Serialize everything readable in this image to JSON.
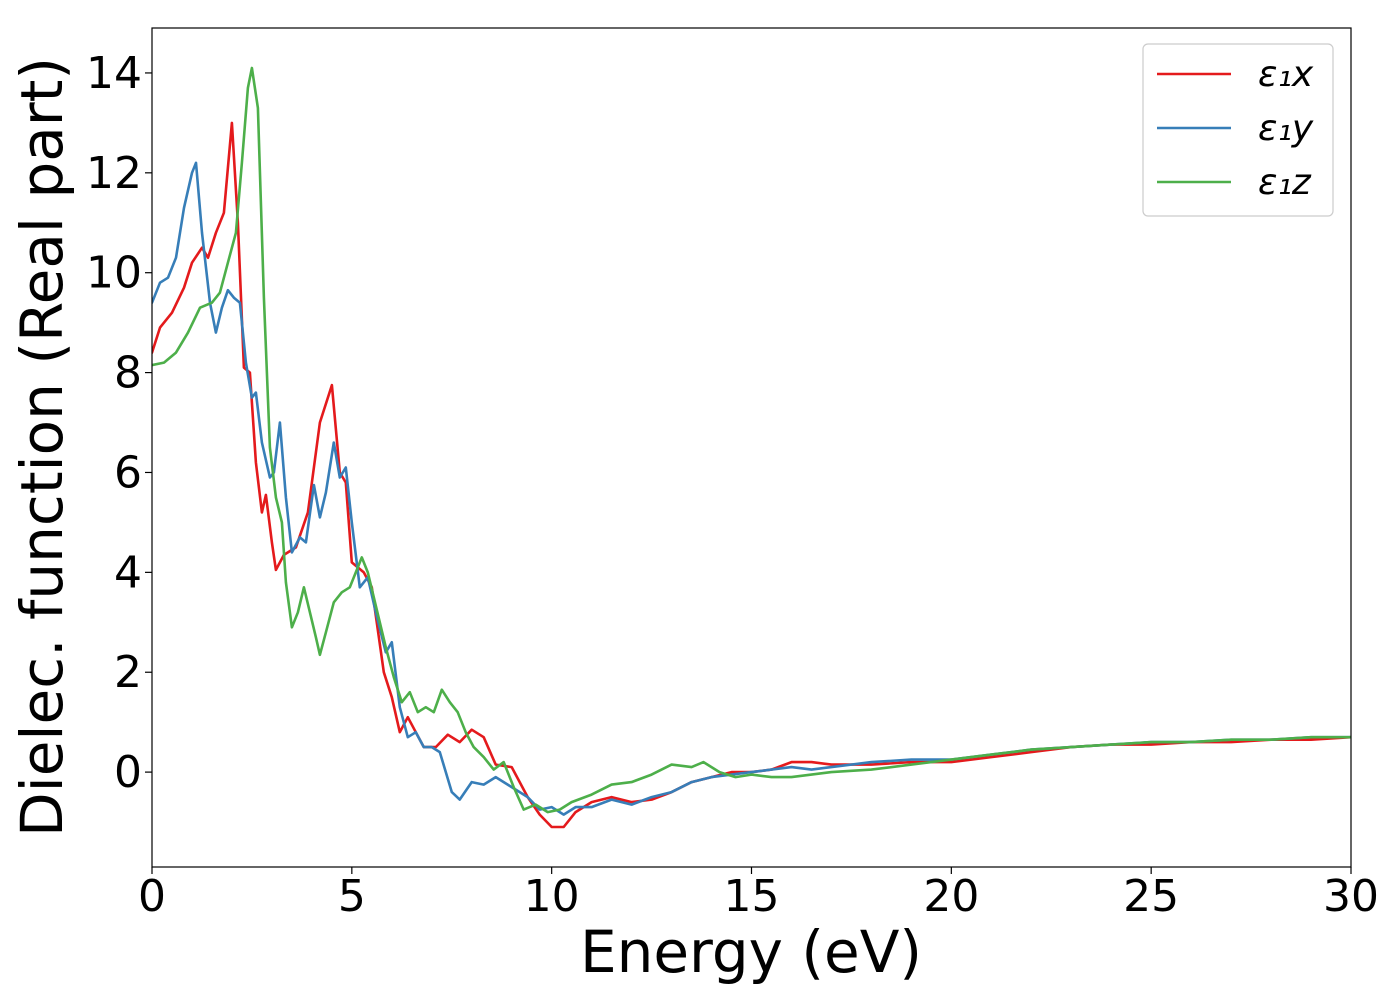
{
  "chart_data": {
    "type": "line",
    "xlabel": "Energy (eV)",
    "ylabel": "Dielec. function (Real part)",
    "xlim": [
      0,
      30
    ],
    "ylim": [
      -1.9,
      14.9
    ],
    "xticks": [
      0,
      5,
      10,
      15,
      20,
      25,
      30
    ],
    "yticks": [
      0,
      2,
      4,
      6,
      8,
      10,
      12,
      14
    ],
    "grid": false,
    "legend_position": "top-right",
    "series": [
      {
        "name": "ε₁x",
        "color": "#e41a1c",
        "points": [
          [
            0,
            8.4
          ],
          [
            0.2,
            8.9
          ],
          [
            0.5,
            9.2
          ],
          [
            0.8,
            9.7
          ],
          [
            1.0,
            10.2
          ],
          [
            1.25,
            10.5
          ],
          [
            1.4,
            10.3
          ],
          [
            1.6,
            10.8
          ],
          [
            1.8,
            11.2
          ],
          [
            2.0,
            13.0
          ],
          [
            2.15,
            11.0
          ],
          [
            2.3,
            8.1
          ],
          [
            2.45,
            8.0
          ],
          [
            2.6,
            6.2
          ],
          [
            2.75,
            5.2
          ],
          [
            2.85,
            5.55
          ],
          [
            3.0,
            4.6
          ],
          [
            3.1,
            4.05
          ],
          [
            3.3,
            4.35
          ],
          [
            3.6,
            4.5
          ],
          [
            3.9,
            5.2
          ],
          [
            4.2,
            7.0
          ],
          [
            4.5,
            7.75
          ],
          [
            4.7,
            6.0
          ],
          [
            4.85,
            5.8
          ],
          [
            5.0,
            4.2
          ],
          [
            5.3,
            4.0
          ],
          [
            5.5,
            3.7
          ],
          [
            5.8,
            2.0
          ],
          [
            6.0,
            1.5
          ],
          [
            6.2,
            0.8
          ],
          [
            6.4,
            1.1
          ],
          [
            6.6,
            0.8
          ],
          [
            6.8,
            0.5
          ],
          [
            7.1,
            0.5
          ],
          [
            7.4,
            0.75
          ],
          [
            7.7,
            0.6
          ],
          [
            8.0,
            0.85
          ],
          [
            8.3,
            0.7
          ],
          [
            8.6,
            0.15
          ],
          [
            9.0,
            0.1
          ],
          [
            9.4,
            -0.5
          ],
          [
            9.7,
            -0.85
          ],
          [
            10.0,
            -1.1
          ],
          [
            10.3,
            -1.1
          ],
          [
            10.6,
            -0.8
          ],
          [
            11.0,
            -0.6
          ],
          [
            11.5,
            -0.5
          ],
          [
            12.0,
            -0.6
          ],
          [
            12.5,
            -0.55
          ],
          [
            13.0,
            -0.4
          ],
          [
            13.5,
            -0.2
          ],
          [
            14.0,
            -0.1
          ],
          [
            14.5,
            0.0
          ],
          [
            15.0,
            0.0
          ],
          [
            15.5,
            0.05
          ],
          [
            16.0,
            0.2
          ],
          [
            16.5,
            0.2
          ],
          [
            17.0,
            0.15
          ],
          [
            18.0,
            0.15
          ],
          [
            19.0,
            0.2
          ],
          [
            20.0,
            0.2
          ],
          [
            21.0,
            0.3
          ],
          [
            22.0,
            0.4
          ],
          [
            23.0,
            0.5
          ],
          [
            24.0,
            0.55
          ],
          [
            25.0,
            0.55
          ],
          [
            26.0,
            0.6
          ],
          [
            27.0,
            0.6
          ],
          [
            28.0,
            0.65
          ],
          [
            29.0,
            0.65
          ],
          [
            30.0,
            0.7
          ]
        ]
      },
      {
        "name": "ε₁y",
        "color": "#377eb8",
        "points": [
          [
            0,
            9.4
          ],
          [
            0.2,
            9.8
          ],
          [
            0.4,
            9.9
          ],
          [
            0.6,
            10.3
          ],
          [
            0.8,
            11.3
          ],
          [
            1.0,
            12.0
          ],
          [
            1.1,
            12.2
          ],
          [
            1.25,
            10.8
          ],
          [
            1.45,
            9.4
          ],
          [
            1.6,
            8.8
          ],
          [
            1.75,
            9.3
          ],
          [
            1.9,
            9.65
          ],
          [
            2.05,
            9.5
          ],
          [
            2.2,
            9.4
          ],
          [
            2.35,
            8.2
          ],
          [
            2.5,
            7.5
          ],
          [
            2.6,
            7.6
          ],
          [
            2.75,
            6.6
          ],
          [
            2.95,
            5.9
          ],
          [
            3.05,
            6.0
          ],
          [
            3.2,
            7.0
          ],
          [
            3.35,
            5.5
          ],
          [
            3.5,
            4.4
          ],
          [
            3.7,
            4.7
          ],
          [
            3.85,
            4.6
          ],
          [
            4.05,
            5.75
          ],
          [
            4.2,
            5.1
          ],
          [
            4.35,
            5.6
          ],
          [
            4.55,
            6.6
          ],
          [
            4.7,
            5.9
          ],
          [
            4.85,
            6.1
          ],
          [
            5.0,
            5.0
          ],
          [
            5.2,
            3.7
          ],
          [
            5.4,
            3.9
          ],
          [
            5.6,
            3.2
          ],
          [
            5.85,
            2.4
          ],
          [
            6.0,
            2.6
          ],
          [
            6.2,
            1.3
          ],
          [
            6.4,
            0.7
          ],
          [
            6.6,
            0.8
          ],
          [
            6.8,
            0.5
          ],
          [
            7.0,
            0.5
          ],
          [
            7.2,
            0.4
          ],
          [
            7.5,
            -0.4
          ],
          [
            7.7,
            -0.55
          ],
          [
            8.0,
            -0.2
          ],
          [
            8.3,
            -0.25
          ],
          [
            8.6,
            -0.1
          ],
          [
            9.0,
            -0.3
          ],
          [
            9.4,
            -0.5
          ],
          [
            9.7,
            -0.75
          ],
          [
            10.0,
            -0.7
          ],
          [
            10.3,
            -0.85
          ],
          [
            10.6,
            -0.7
          ],
          [
            11.0,
            -0.7
          ],
          [
            11.5,
            -0.55
          ],
          [
            12.0,
            -0.65
          ],
          [
            12.5,
            -0.5
          ],
          [
            13.0,
            -0.4
          ],
          [
            13.5,
            -0.2
          ],
          [
            14.0,
            -0.1
          ],
          [
            14.5,
            -0.05
          ],
          [
            15.0,
            0.0
          ],
          [
            15.5,
            0.05
          ],
          [
            16.0,
            0.1
          ],
          [
            16.5,
            0.05
          ],
          [
            17.0,
            0.1
          ],
          [
            18.0,
            0.2
          ],
          [
            19.0,
            0.25
          ],
          [
            20.0,
            0.25
          ],
          [
            21.0,
            0.35
          ],
          [
            22.0,
            0.45
          ],
          [
            23.0,
            0.5
          ],
          [
            24.0,
            0.55
          ],
          [
            25.0,
            0.6
          ],
          [
            26.0,
            0.6
          ],
          [
            27.0,
            0.65
          ],
          [
            28.0,
            0.65
          ],
          [
            29.0,
            0.7
          ],
          [
            30.0,
            0.7
          ]
        ]
      },
      {
        "name": "ε₁z",
        "color": "#4daf4a",
        "points": [
          [
            0,
            8.15
          ],
          [
            0.3,
            8.2
          ],
          [
            0.6,
            8.4
          ],
          [
            0.9,
            8.8
          ],
          [
            1.2,
            9.3
          ],
          [
            1.5,
            9.4
          ],
          [
            1.7,
            9.6
          ],
          [
            1.9,
            10.2
          ],
          [
            2.1,
            10.8
          ],
          [
            2.25,
            12.2
          ],
          [
            2.4,
            13.7
          ],
          [
            2.5,
            14.1
          ],
          [
            2.65,
            13.3
          ],
          [
            2.8,
            9.5
          ],
          [
            2.95,
            6.5
          ],
          [
            3.1,
            5.5
          ],
          [
            3.25,
            5.0
          ],
          [
            3.35,
            3.8
          ],
          [
            3.5,
            2.9
          ],
          [
            3.65,
            3.2
          ],
          [
            3.8,
            3.7
          ],
          [
            3.95,
            3.2
          ],
          [
            4.1,
            2.7
          ],
          [
            4.2,
            2.35
          ],
          [
            4.35,
            2.8
          ],
          [
            4.55,
            3.4
          ],
          [
            4.75,
            3.6
          ],
          [
            4.95,
            3.7
          ],
          [
            5.1,
            4.0
          ],
          [
            5.25,
            4.3
          ],
          [
            5.4,
            4.0
          ],
          [
            5.55,
            3.5
          ],
          [
            5.7,
            3.0
          ],
          [
            5.85,
            2.5
          ],
          [
            6.05,
            1.9
          ],
          [
            6.25,
            1.4
          ],
          [
            6.45,
            1.6
          ],
          [
            6.65,
            1.2
          ],
          [
            6.85,
            1.3
          ],
          [
            7.05,
            1.2
          ],
          [
            7.25,
            1.65
          ],
          [
            7.45,
            1.4
          ],
          [
            7.65,
            1.2
          ],
          [
            7.85,
            0.8
          ],
          [
            8.05,
            0.5
          ],
          [
            8.3,
            0.3
          ],
          [
            8.55,
            0.05
          ],
          [
            8.8,
            0.2
          ],
          [
            9.05,
            -0.3
          ],
          [
            9.3,
            -0.75
          ],
          [
            9.6,
            -0.65
          ],
          [
            9.9,
            -0.8
          ],
          [
            10.2,
            -0.75
          ],
          [
            10.5,
            -0.6
          ],
          [
            11.0,
            -0.45
          ],
          [
            11.5,
            -0.25
          ],
          [
            12.0,
            -0.2
          ],
          [
            12.5,
            -0.05
          ],
          [
            13.0,
            0.15
          ],
          [
            13.5,
            0.1
          ],
          [
            13.8,
            0.2
          ],
          [
            14.2,
            0.0
          ],
          [
            14.6,
            -0.1
          ],
          [
            15.0,
            -0.05
          ],
          [
            15.5,
            -0.1
          ],
          [
            16.0,
            -0.1
          ],
          [
            16.5,
            -0.05
          ],
          [
            17.0,
            0.0
          ],
          [
            18.0,
            0.05
          ],
          [
            19.0,
            0.15
          ],
          [
            20.0,
            0.25
          ],
          [
            21.0,
            0.35
          ],
          [
            22.0,
            0.45
          ],
          [
            23.0,
            0.5
          ],
          [
            24.0,
            0.55
          ],
          [
            25.0,
            0.6
          ],
          [
            26.0,
            0.6
          ],
          [
            27.0,
            0.65
          ],
          [
            28.0,
            0.65
          ],
          [
            29.0,
            0.7
          ],
          [
            30.0,
            0.7
          ]
        ]
      }
    ]
  }
}
